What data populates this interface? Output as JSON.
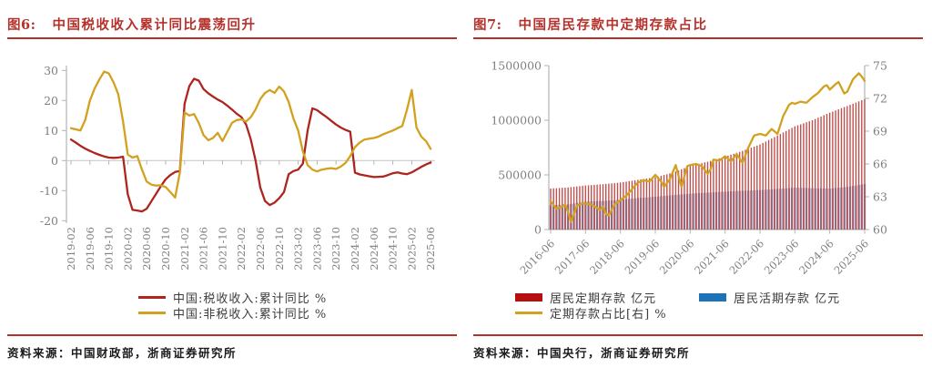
{
  "panels": {
    "fig6": {
      "no": "图6:",
      "source": "资料来源：中国财政部，浙商证券研究所"
    },
    "fig7": {
      "no": "图7:",
      "source": "资料来源：中国央行，浙商证券研究所"
    }
  },
  "colors": {
    "accent_red": "#b5312c",
    "tax_line": "#ae2520",
    "nontax_line": "#d2a11f",
    "bar_red": "#c0504d",
    "bar_blue": "#7186b5",
    "legend_red": "#b70f0f",
    "legend_blue": "#1d72b8",
    "ratio_line": "#d2a11f",
    "axis": "#b3b3b3",
    "zero_line": "#cccccc"
  },
  "chart_data": [
    {
      "id": "fig6",
      "type": "line",
      "title": "中国税收收入累计同比震荡回升",
      "x_tick_labels": [
        "2019-02",
        "2019-06",
        "2019-10",
        "2020-02",
        "2020-06",
        "2020-10",
        "2021-02",
        "2021-06",
        "2021-10",
        "2022-02",
        "2022-06",
        "2022-10",
        "2023-02",
        "2023-06",
        "2023-10",
        "2024-02",
        "2024-06",
        "2024-10",
        "2025-02",
        "2025-06"
      ],
      "months_span": 76,
      "ylim": [
        -20,
        30
      ],
      "yticks": [
        -20,
        -10,
        0,
        10,
        20,
        30
      ],
      "grid": "zero-line-only",
      "legend_position": "bottom",
      "series": [
        {
          "name": "中国:税收收入:累计同比 %",
          "color": "#ae2520",
          "monthly": [
            [
              0,
              7
            ],
            [
              1,
              6
            ],
            [
              2,
              4.9
            ],
            [
              3,
              4
            ],
            [
              4,
              3.2
            ],
            [
              5,
              2.5
            ],
            [
              6,
              1.9
            ],
            [
              7,
              1.4
            ],
            [
              8,
              1
            ],
            [
              9,
              0.9
            ],
            [
              10,
              1
            ],
            [
              11,
              1.3
            ],
            [
              12,
              -11.2
            ],
            [
              13,
              -16.4
            ],
            [
              14,
              -16.6
            ],
            [
              15,
              -16.9
            ],
            [
              16,
              -16
            ],
            [
              17,
              -13.5
            ],
            [
              18,
              -11
            ],
            [
              19,
              -8.5
            ],
            [
              20,
              -6.2
            ],
            [
              21,
              -4.8
            ],
            [
              22,
              -3.8
            ],
            [
              23,
              -3.5
            ],
            [
              24,
              18.9
            ],
            [
              25,
              24.8
            ],
            [
              26,
              27.2
            ],
            [
              27,
              26.6
            ],
            [
              28,
              23.8
            ],
            [
              29,
              22.4
            ],
            [
              30,
              21.3
            ],
            [
              31,
              20.3
            ],
            [
              32,
              19.5
            ],
            [
              33,
              18.3
            ],
            [
              34,
              17
            ],
            [
              35,
              15.6
            ],
            [
              36,
              14.5
            ],
            [
              37,
              12
            ],
            [
              38,
              7
            ],
            [
              39,
              0
            ],
            [
              40,
              -9
            ],
            [
              41,
              -13.5
            ],
            [
              42,
              -14.8
            ],
            [
              43,
              -14
            ],
            [
              44,
              -12.5
            ],
            [
              45,
              -10.5
            ],
            [
              46,
              -4.5
            ],
            [
              47,
              -3.5
            ],
            [
              48,
              -3
            ],
            [
              49,
              -1
            ],
            [
              50,
              10
            ],
            [
              51,
              17.4
            ],
            [
              52,
              16.8
            ],
            [
              53,
              15.6
            ],
            [
              54,
              14.5
            ],
            [
              55,
              13.2
            ],
            [
              56,
              12
            ],
            [
              57,
              11
            ],
            [
              58,
              10.2
            ],
            [
              59,
              9.6
            ],
            [
              60,
              -4
            ],
            [
              61,
              -4.6
            ],
            [
              62,
              -4.9
            ],
            [
              63,
              -5.2
            ],
            [
              64,
              -5.5
            ],
            [
              65,
              -5.4
            ],
            [
              66,
              -5.3
            ],
            [
              67,
              -4.8
            ],
            [
              68,
              -4.2
            ],
            [
              69,
              -3.9
            ],
            [
              70,
              -4.3
            ],
            [
              71,
              -4.5
            ],
            [
              72,
              -3.9
            ],
            [
              73,
              -3
            ],
            [
              74,
              -2.1
            ],
            [
              75,
              -1.3
            ],
            [
              76,
              -0.6
            ]
          ]
        },
        {
          "name": "中国:非税收入:累计同比 %",
          "color": "#d2a11f",
          "monthly": [
            [
              0,
              10.8
            ],
            [
              1,
              10.4
            ],
            [
              2,
              10
            ],
            [
              3,
              13.5
            ],
            [
              4,
              20
            ],
            [
              5,
              24
            ],
            [
              6,
              27
            ],
            [
              7,
              29.6
            ],
            [
              8,
              29
            ],
            [
              9,
              26
            ],
            [
              10,
              22
            ],
            [
              11,
              13
            ],
            [
              12,
              2
            ],
            [
              13,
              1
            ],
            [
              14,
              1.5
            ],
            [
              15,
              -3
            ],
            [
              16,
              -7
            ],
            [
              17,
              -8
            ],
            [
              18,
              -8.3
            ],
            [
              19,
              -8.2
            ],
            [
              20,
              -8.8
            ],
            [
              21,
              -10.5
            ],
            [
              22,
              -12.3
            ],
            [
              23,
              -4
            ],
            [
              24,
              16
            ],
            [
              25,
              15
            ],
            [
              26,
              15.5
            ],
            [
              27,
              12.5
            ],
            [
              28,
              8.5
            ],
            [
              29,
              6.8
            ],
            [
              30,
              7.5
            ],
            [
              31,
              9.2
            ],
            [
              32,
              6.5
            ],
            [
              33,
              9.5
            ],
            [
              34,
              12.5
            ],
            [
              35,
              13.5
            ],
            [
              36,
              13.7
            ],
            [
              37,
              13
            ],
            [
              38,
              14.5
            ],
            [
              39,
              17
            ],
            [
              40,
              20.5
            ],
            [
              41,
              22.5
            ],
            [
              42,
              23.5
            ],
            [
              43,
              22.5
            ],
            [
              44,
              24.6
            ],
            [
              45,
              23
            ],
            [
              46,
              19.5
            ],
            [
              47,
              14
            ],
            [
              48,
              10
            ],
            [
              49,
              3
            ],
            [
              50,
              -1.5
            ],
            [
              51,
              -3
            ],
            [
              52,
              -3.6
            ],
            [
              53,
              -3
            ],
            [
              54,
              -2.7
            ],
            [
              55,
              -2.5
            ],
            [
              56,
              -2.8
            ],
            [
              57,
              -2
            ],
            [
              58,
              -0.8
            ],
            [
              59,
              1.5
            ],
            [
              60,
              4.5
            ],
            [
              61,
              6
            ],
            [
              62,
              7
            ],
            [
              63,
              7.3
            ],
            [
              64,
              7.5
            ],
            [
              65,
              8
            ],
            [
              66,
              8.8
            ],
            [
              67,
              9.4
            ],
            [
              68,
              10
            ],
            [
              69,
              10.8
            ],
            [
              70,
              11.5
            ],
            [
              71,
              17
            ],
            [
              72,
              23.5
            ],
            [
              73,
              11
            ],
            [
              74,
              8
            ],
            [
              75,
              6.5
            ],
            [
              76,
              3.9
            ]
          ]
        }
      ]
    },
    {
      "id": "fig7",
      "type": "bar+line",
      "title": "中国居民存款中定期存款占比",
      "x_tick_labels": [
        "2016-06",
        "2017-06",
        "2018-06",
        "2019-06",
        "2020-06",
        "2021-06",
        "2022-06",
        "2023-06",
        "2024-06",
        "2025-06"
      ],
      "months_span": 108,
      "left_axis": {
        "lim": [
          0,
          1500000
        ],
        "ticks": [
          0,
          500000,
          1000000,
          1500000
        ],
        "unit": "亿元"
      },
      "right_axis": {
        "lim": [
          60,
          75
        ],
        "ticks": [
          60,
          63,
          66,
          69,
          72,
          75
        ],
        "unit": "%"
      },
      "legend_position": "bottom",
      "series": [
        {
          "name": "居民定期存款 亿元",
          "type": "bar",
          "axis": "left",
          "color": "#c0504d",
          "anchors": [
            [
              0,
              375000
            ],
            [
              6,
              385000
            ],
            [
              12,
              403000
            ],
            [
              18,
              415000
            ],
            [
              24,
              430000
            ],
            [
              30,
              455000
            ],
            [
              36,
              478000
            ],
            [
              42,
              520000
            ],
            [
              48,
              583000
            ],
            [
              54,
              620000
            ],
            [
              60,
              667000
            ],
            [
              66,
              720000
            ],
            [
              72,
              778000
            ],
            [
              78,
              860000
            ],
            [
              84,
              944000
            ],
            [
              90,
              1000000
            ],
            [
              96,
              1069000
            ],
            [
              102,
              1130000
            ],
            [
              108,
              1194000
            ]
          ]
        },
        {
          "name": "居民活期存款 亿元",
          "type": "bar",
          "axis": "left",
          "color": "#7186b5",
          "anchors": [
            [
              0,
              222000
            ],
            [
              6,
              230000
            ],
            [
              12,
              256000
            ],
            [
              18,
              262000
            ],
            [
              24,
              272000
            ],
            [
              30,
              288000
            ],
            [
              36,
              300000
            ],
            [
              42,
              315000
            ],
            [
              48,
              328000
            ],
            [
              54,
              338000
            ],
            [
              60,
              347000
            ],
            [
              66,
              355000
            ],
            [
              72,
              361000
            ],
            [
              78,
              372000
            ],
            [
              84,
              383000
            ],
            [
              90,
              378000
            ],
            [
              96,
              375000
            ],
            [
              102,
              390000
            ],
            [
              108,
              417000
            ]
          ]
        },
        {
          "name": "定期存款占比[右] %",
          "type": "line",
          "axis": "right",
          "color": "#d2a11f",
          "anchors": [
            [
              0,
              62.6
            ],
            [
              2,
              61.9
            ],
            [
              4,
              62.1
            ],
            [
              5,
              62.3
            ],
            [
              6,
              61.6
            ],
            [
              7,
              60.7
            ],
            [
              9,
              62.2
            ],
            [
              11,
              62.4
            ],
            [
              14,
              62.3
            ],
            [
              17,
              61.8
            ],
            [
              18,
              62.1
            ],
            [
              19,
              61.4
            ],
            [
              20,
              61.3
            ],
            [
              22,
              62.3
            ],
            [
              26,
              63.1
            ],
            [
              30,
              64.3
            ],
            [
              32,
              64.5
            ],
            [
              34,
              64.4
            ],
            [
              36,
              65
            ],
            [
              38,
              64.4
            ],
            [
              39,
              63.9
            ],
            [
              41,
              64.6
            ],
            [
              43,
              65.9
            ],
            [
              45,
              63.9
            ],
            [
              47,
              65.8
            ],
            [
              48,
              65.9
            ],
            [
              50,
              66
            ],
            [
              52,
              65.8
            ],
            [
              54,
              65.1
            ],
            [
              55,
              65.5
            ],
            [
              56,
              66.4
            ],
            [
              58,
              66.3
            ],
            [
              60,
              66.7
            ],
            [
              62,
              66.25
            ],
            [
              64,
              66.9
            ],
            [
              66,
              66.1
            ],
            [
              68,
              67.5
            ],
            [
              70,
              68.6
            ],
            [
              72,
              68.75
            ],
            [
              74,
              68.6
            ],
            [
              76,
              69.2
            ],
            [
              78,
              68.75
            ],
            [
              80,
              70.4
            ],
            [
              82,
              71.4
            ],
            [
              83,
              71.6
            ],
            [
              84,
              71.5
            ],
            [
              86,
              71.7
            ],
            [
              88,
              71.6
            ],
            [
              90,
              72.1
            ],
            [
              92,
              72.5
            ],
            [
              94,
              73.1
            ],
            [
              95,
              73.2
            ],
            [
              96,
              72.8
            ],
            [
              98,
              73.3
            ],
            [
              99,
              73.5
            ],
            [
              101,
              72.45
            ],
            [
              102,
              72.6
            ],
            [
              104,
              73.75
            ],
            [
              106,
              74.3
            ],
            [
              107,
              74
            ],
            [
              108,
              73.6
            ]
          ]
        }
      ]
    }
  ]
}
